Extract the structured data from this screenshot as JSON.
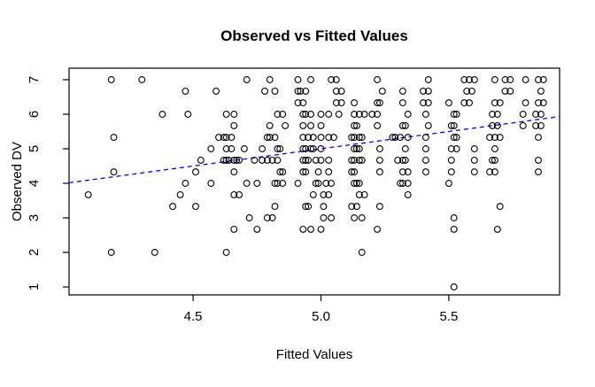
{
  "chart_data": {
    "type": "scatter",
    "title": "Observed vs Fitted Values",
    "xlabel": "Fitted Values",
    "ylabel": "Observed DV",
    "x_ticks": [
      4.5,
      5.0,
      5.5
    ],
    "x_tick_labels": [
      "4.5",
      "5.0",
      "5.5"
    ],
    "y_ticks": [
      1,
      2,
      3,
      4,
      5,
      6,
      7
    ],
    "y_tick_labels": [
      "1",
      "2",
      "3",
      "4",
      "5",
      "6",
      "7"
    ],
    "xlim": [
      4.015,
      5.933
    ],
    "ylim": [
      0.769,
      7.333
    ],
    "grid": false,
    "legend": "none",
    "marker": "open-circle",
    "marker_color": "#000000",
    "background_color": "#ffffff",
    "box_color": "#000000",
    "trend_line": {
      "description": "identity-style regression line, dashed blue",
      "x1": 4.015,
      "y1": 4.015,
      "x2": 5.933,
      "y2": 5.933,
      "color": "#0000FF",
      "dashed": true
    },
    "rows": [
      {
        "dv": 7,
        "fitted": [
          4.18,
          4.3,
          4.71,
          4.8,
          4.91,
          4.96,
          5.04,
          5.06,
          5.22,
          5.42,
          5.56,
          5.58,
          5.6,
          5.68,
          5.72,
          5.74,
          5.8,
          5.85,
          5.87
        ]
      },
      {
        "dv": 6.67,
        "fitted": [
          4.47,
          4.59,
          4.78,
          4.82,
          4.91,
          4.92,
          4.94,
          5.06,
          5.08,
          5.24,
          5.32,
          5.4,
          5.42,
          5.57,
          5.59,
          5.72,
          5.74,
          5.86
        ]
      },
      {
        "dv": 6.33,
        "fitted": [
          4.91,
          4.93,
          5.06,
          5.08,
          5.13,
          5.22,
          5.23,
          5.32,
          5.4,
          5.42,
          5.5,
          5.56,
          5.58,
          5.68,
          5.7,
          5.8,
          5.85,
          5.87
        ]
      },
      {
        "dv": 6,
        "fitted": [
          4.38,
          4.48,
          4.63,
          4.66,
          4.83,
          4.85,
          4.93,
          4.94,
          4.96,
          5.0,
          5.03,
          5.07,
          5.13,
          5.15,
          5.17,
          5.2,
          5.22,
          5.34,
          5.41,
          5.52,
          5.53,
          5.67,
          5.69,
          5.79,
          5.84,
          5.86
        ]
      },
      {
        "dv": 5.67,
        "fitted": [
          4.66,
          4.8,
          4.86,
          4.93,
          4.96,
          5.0,
          5.13,
          5.14,
          5.22,
          5.32,
          5.33,
          5.42,
          5.51,
          5.52,
          5.67,
          5.69,
          5.79,
          5.84,
          5.86
        ]
      },
      {
        "dv": 5.33,
        "fitted": [
          4.19,
          4.6,
          4.62,
          4.63,
          4.65,
          4.79,
          4.8,
          4.82,
          4.93,
          4.95,
          4.97,
          5.0,
          5.03,
          5.05,
          5.12,
          5.13,
          5.15,
          5.16,
          5.28,
          5.29,
          5.31,
          5.34,
          5.41,
          5.52,
          5.53,
          5.66,
          5.68,
          5.7,
          5.85
        ]
      },
      {
        "dv": 5,
        "fitted": [
          4.57,
          4.63,
          4.65,
          4.7,
          4.77,
          4.83,
          4.84,
          4.93,
          4.94,
          4.96,
          4.97,
          5.0,
          5.13,
          5.14,
          5.15,
          5.23,
          5.33,
          5.41,
          5.51,
          5.53,
          5.6,
          5.68
        ]
      },
      {
        "dv": 4.67,
        "fitted": [
          4.53,
          4.62,
          4.63,
          4.64,
          4.66,
          4.67,
          4.68,
          4.74,
          4.77,
          4.79,
          4.81,
          4.83,
          4.93,
          4.94,
          4.95,
          4.98,
          5.0,
          5.03,
          5.12,
          5.13,
          5.15,
          5.16,
          5.23,
          5.3,
          5.32,
          5.33,
          5.41,
          5.51,
          5.6,
          5.67,
          5.68,
          5.85
        ]
      },
      {
        "dv": 4.33,
        "fitted": [
          4.19,
          4.51,
          4.66,
          4.84,
          4.85,
          4.93,
          4.94,
          4.99,
          5.03,
          5.12,
          5.13,
          5.23,
          5.32,
          5.34,
          5.41,
          5.51,
          5.6,
          5.66,
          5.68,
          5.85
        ]
      },
      {
        "dv": 4,
        "fitted": [
          4.47,
          4.57,
          4.71,
          4.75,
          4.82,
          4.83,
          4.85,
          4.91,
          4.98,
          4.99,
          5.02,
          5.04,
          5.13,
          5.14,
          5.15,
          5.31,
          5.32,
          5.34,
          5.5
        ]
      },
      {
        "dv": 3.67,
        "fitted": [
          4.09,
          4.45,
          4.66,
          4.68,
          4.97,
          5.01,
          5.03,
          5.15,
          5.17,
          5.34
        ]
      },
      {
        "dv": 3.33,
        "fitted": [
          4.42,
          4.51,
          4.82,
          4.94,
          4.95,
          5.01,
          5.12,
          5.14,
          5.23,
          5.7
        ]
      },
      {
        "dv": 3,
        "fitted": [
          4.72,
          4.79,
          4.81,
          5.01,
          5.04,
          5.13,
          5.16,
          5.52
        ]
      },
      {
        "dv": 2.67,
        "fitted": [
          4.66,
          4.75,
          4.93,
          4.96,
          5.0,
          5.22,
          5.52,
          5.69
        ]
      },
      {
        "dv": 2,
        "fitted": [
          4.18,
          4.35,
          4.63,
          5.16
        ]
      },
      {
        "dv": 1,
        "fitted": [
          5.52
        ]
      }
    ]
  }
}
